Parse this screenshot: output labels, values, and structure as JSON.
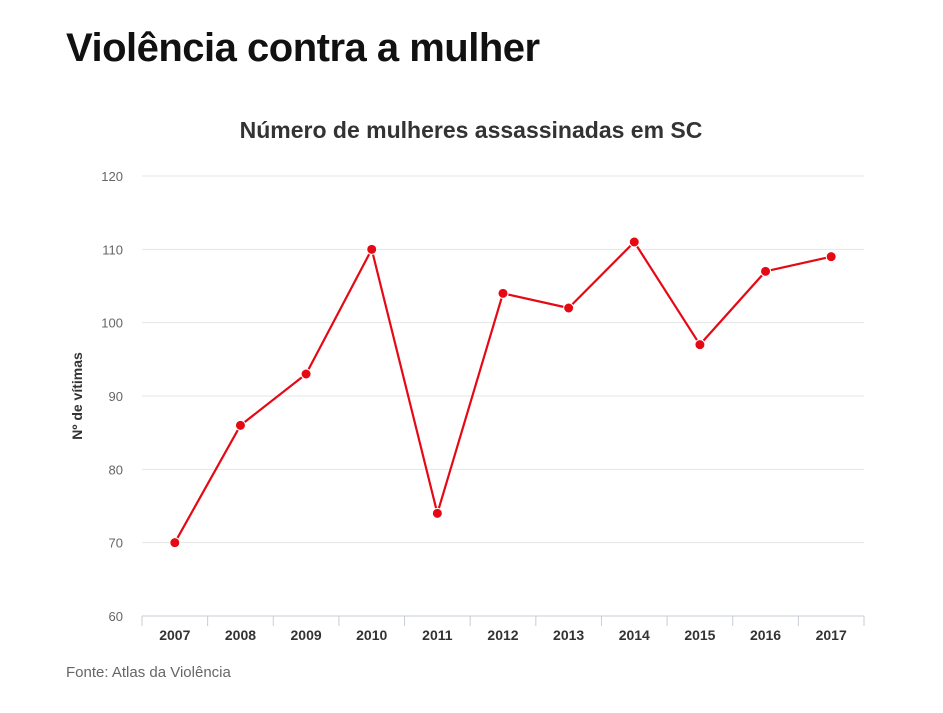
{
  "page": {
    "title": "Violência contra a mulher",
    "source": "Fonte: Atlas da Violência"
  },
  "colors": {
    "line": "#e50914",
    "grid": "#e6e6e6",
    "axis": "#c7ccd6",
    "tick_text": "#666666",
    "category_text": "#333333"
  },
  "chart_data": {
    "type": "line",
    "title": "Número de mulheres assassinadas em SC",
    "xlabel": "",
    "ylabel": "Nº de vítimas",
    "categories": [
      "2007",
      "2008",
      "2009",
      "2010",
      "2011",
      "2012",
      "2013",
      "2014",
      "2015",
      "2016",
      "2017"
    ],
    "series": [
      {
        "values": [
          70,
          86,
          93,
          110,
          74,
          104,
          102,
          111,
          97,
          107,
          109
        ]
      }
    ],
    "ylim": [
      60,
      120
    ],
    "yticks": [
      60,
      70,
      80,
      90,
      100,
      110,
      120
    ],
    "grid": true,
    "legend": "none"
  }
}
